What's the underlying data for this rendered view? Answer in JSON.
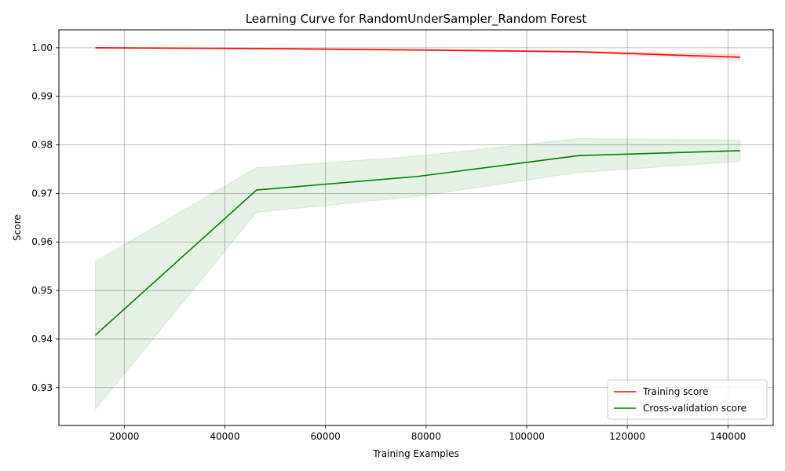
{
  "chart_data": {
    "type": "line",
    "title": "Learning Curve for RandomUnderSampler_Random Forest",
    "xlabel": "Training Examples",
    "ylabel": "Score",
    "xlim": [
      7000,
      149000
    ],
    "ylim": [
      0.9222,
      1.0037
    ],
    "xticks": [
      20000,
      40000,
      60000,
      80000,
      100000,
      120000,
      140000
    ],
    "yticks": [
      0.93,
      0.94,
      0.95,
      0.96,
      0.97,
      0.98,
      0.99,
      1.0
    ],
    "ytick_labels": [
      "0.93",
      "0.94",
      "0.95",
      "0.96",
      "0.97",
      "0.98",
      "0.99",
      "1.00"
    ],
    "grid": true,
    "legend_position": "lower-right",
    "x": [
      14241,
      46284,
      78326,
      110369,
      142412
    ],
    "series": [
      {
        "name": "Training score",
        "color": "#ff0000",
        "band_color": "#ff0000",
        "band_opacity": 0.1,
        "values": [
          1.0,
          0.99985,
          0.99955,
          0.99918,
          0.99805
        ],
        "band_lower": [
          1.0,
          0.99978,
          0.99945,
          0.99905,
          0.99745
        ],
        "band_upper": [
          1.0,
          0.99992,
          0.99965,
          0.99931,
          0.99865
        ]
      },
      {
        "name": "Cross-validation score",
        "color": "#008000",
        "band_color": "#008000",
        "band_opacity": 0.1,
        "values": [
          0.9408,
          0.9707,
          0.9735,
          0.9778,
          0.9788
        ],
        "band_lower": [
          0.9255,
          0.9661,
          0.9694,
          0.9743,
          0.9766
        ],
        "band_upper": [
          0.956,
          0.9753,
          0.9777,
          0.9813,
          0.981
        ]
      }
    ]
  }
}
